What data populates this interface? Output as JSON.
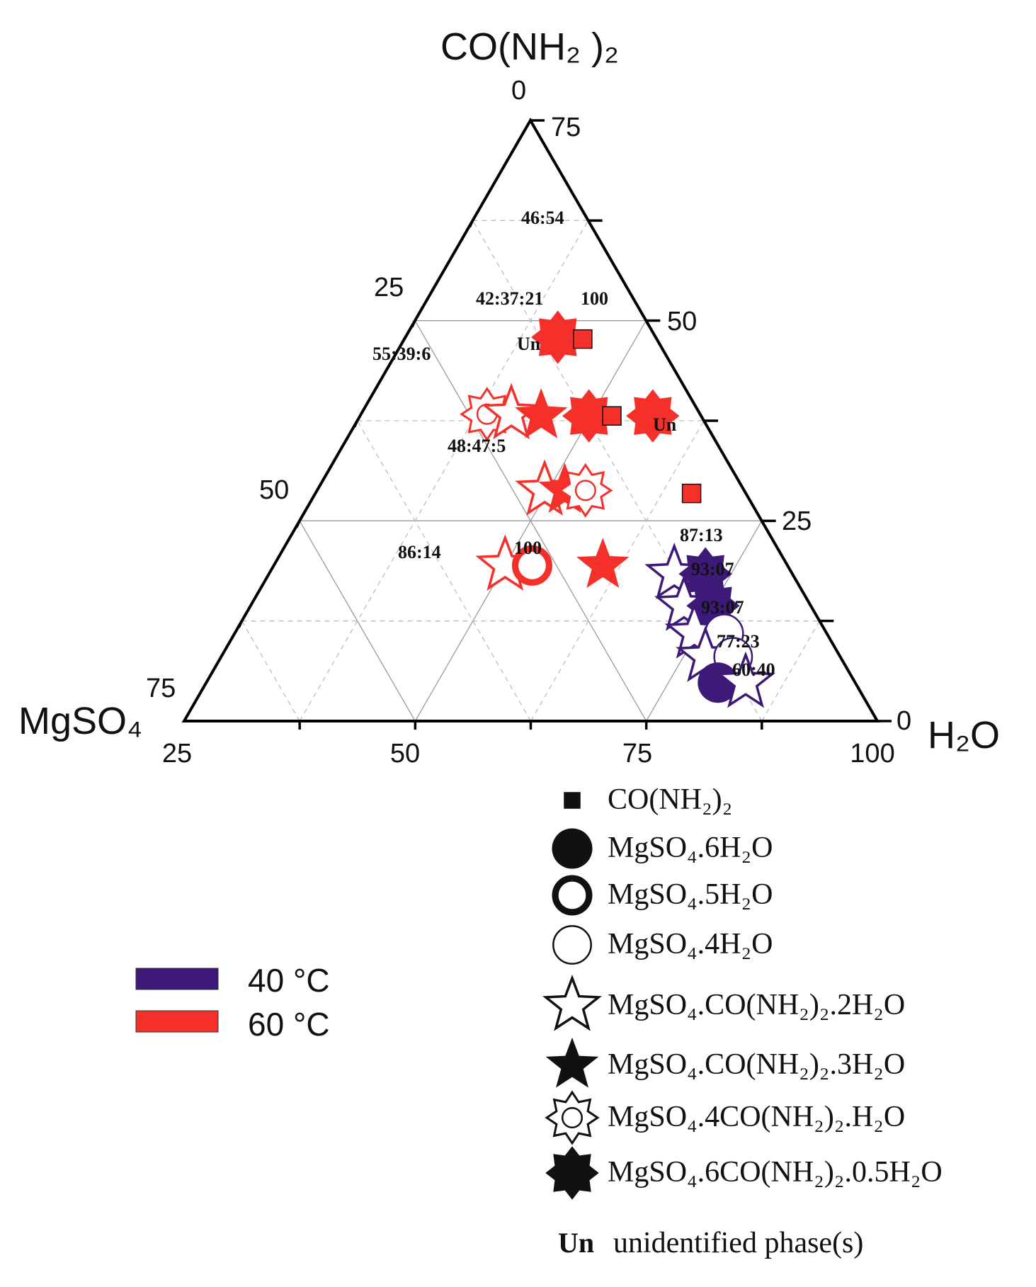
{
  "chart_data": {
    "type": "ternary-scatter",
    "title": "",
    "axes": {
      "top": "CO(NH₂ )₂",
      "left": "MgSO₄",
      "right": "H₂O"
    },
    "ticks": {
      "top": [
        "0"
      ],
      "left": [
        "25",
        "50",
        "75"
      ],
      "right": [
        "75",
        "50",
        "25",
        "0"
      ],
      "bottom": [
        "25",
        "50",
        "75",
        "100"
      ]
    },
    "temperatures": [
      {
        "name": "40 °C",
        "label": "40 ",
        "unit": "°C",
        "color": "#3d1a78"
      },
      {
        "name": "60 °C",
        "label": "60 ",
        "unit": "°C",
        "color": "#f5302b"
      }
    ],
    "phases": [
      {
        "key": "urea",
        "label": "CO(NH₂)₂",
        "marker": "square"
      },
      {
        "key": "hexa",
        "label": "MgSO₄.6H₂O",
        "marker": "filled-circle"
      },
      {
        "key": "penta",
        "label": "MgSO₄.5H₂O",
        "marker": "thick-ring"
      },
      {
        "key": "tetra",
        "label": "MgSO₄.4H₂O",
        "marker": "thin-ring"
      },
      {
        "key": "s2",
        "label": "MgSO₄.CO(NH₂)₂.2H₂O",
        "marker": "hollow-star"
      },
      {
        "key": "s3",
        "label": "MgSO₄.CO(NH₂)₂.3H₂O",
        "marker": "filled-star"
      },
      {
        "key": "s4",
        "label": "MgSO₄.4CO(NH₂)₂.H₂O",
        "marker": "hollow-8star"
      },
      {
        "key": "s6",
        "label": "MgSO₄.6CO(NH₂)₂.0.5H₂O",
        "marker": "filled-8star"
      }
    ],
    "unidentified": {
      "symbol": "Un",
      "label": "unidentified phase(s)"
    },
    "series": [
      {
        "name": "60 °C",
        "points": [
          {
            "phase": "s6",
            "x": 53.9,
            "y": 63.9
          },
          {
            "phase": "urea",
            "x": 57.5,
            "y": 63.6
          },
          {
            "phase": "s4",
            "x": 43.7,
            "y": 51.1
          },
          {
            "phase": "s2",
            "x": 47.2,
            "y": 51.1
          },
          {
            "phase": "s3",
            "x": 51.5,
            "y": 50.8
          },
          {
            "phase": "s6",
            "x": 58.4,
            "y": 50.8
          },
          {
            "phase": "urea",
            "x": 61.7,
            "y": 50.8
          },
          {
            "phase": "s6",
            "x": 67.6,
            "y": 50.8
          },
          {
            "phase": "s2",
            "x": 52.0,
            "y": 38.4
          },
          {
            "phase": "s3",
            "x": 54.9,
            "y": 38.4
          },
          {
            "phase": "s4",
            "x": 57.9,
            "y": 38.4
          },
          {
            "phase": "urea",
            "x": 73.2,
            "y": 37.9
          },
          {
            "phase": "s2",
            "x": 46.3,
            "y": 25.9
          },
          {
            "phase": "penta",
            "x": 50.2,
            "y": 25.9
          },
          {
            "phase": "s3",
            "x": 60.4,
            "y": 25.9
          }
        ]
      },
      {
        "name": "40 °C",
        "points": [
          {
            "phase": "s2",
            "x": 70.7,
            "y": 24.5
          },
          {
            "phase": "s6",
            "x": 75.2,
            "y": 24.5
          },
          {
            "phase": "s2",
            "x": 72.1,
            "y": 19.2
          },
          {
            "phase": "s6",
            "x": 76.3,
            "y": 19.2
          },
          {
            "phase": "s2",
            "x": 73.6,
            "y": 14.6
          },
          {
            "phase": "tetra",
            "x": 77.9,
            "y": 14.6
          },
          {
            "phase": "s2",
            "x": 75.2,
            "y": 10.7
          },
          {
            "phase": "tetra",
            "x": 79.2,
            "y": 10.7
          },
          {
            "phase": "hexa",
            "x": 77.0,
            "y": 6.4
          },
          {
            "phase": "s2",
            "x": 81.0,
            "y": 6.4
          }
        ]
      }
    ],
    "annotations": [
      {
        "text": "46:54"
      },
      {
        "text": "42:37:21"
      },
      {
        "text": "100"
      },
      {
        "text": "Un"
      },
      {
        "text": "55:39:6"
      },
      {
        "text": "Un"
      },
      {
        "text": "48:47:5"
      },
      {
        "text": "86:14"
      },
      {
        "text": "100"
      },
      {
        "text": "87:13"
      },
      {
        "text": "93:07"
      },
      {
        "text": "93:07"
      },
      {
        "text": "77:23"
      },
      {
        "text": "60:40"
      }
    ]
  }
}
